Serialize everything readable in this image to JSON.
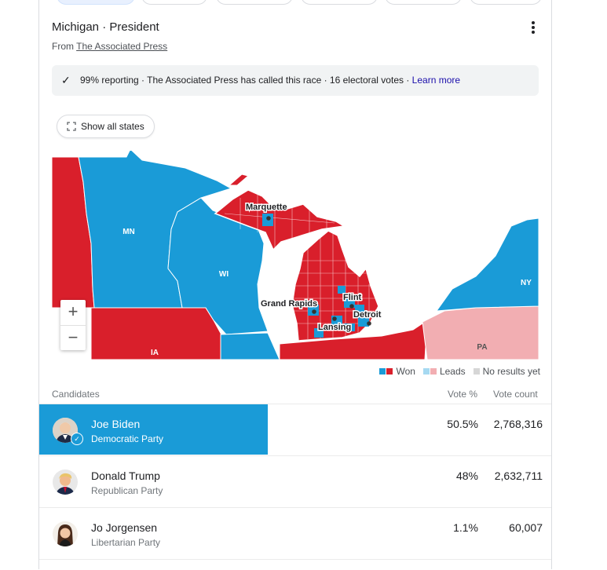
{
  "header": {
    "title": "Michigan · President",
    "source_prefix": "From",
    "source_link": "The Associated Press"
  },
  "banner": {
    "text": "99% reporting · The Associated Press has called this race · 16 electoral votes ·",
    "learn_more": "Learn more"
  },
  "map": {
    "show_all_label": "Show all states",
    "zoom_in": "+",
    "zoom_out": "−",
    "state_labels": {
      "mn": "MN",
      "wi": "WI",
      "ia": "IA",
      "ny": "NY",
      "pa": "PA"
    },
    "city_labels": {
      "marquette": "Marquette",
      "grand_rapids": "Grand Rapids",
      "flint": "Flint",
      "detroit": "Detroit",
      "lansing": "Lansing"
    },
    "colors": {
      "dem": "#1a9bd7",
      "rep": "#d91f2b",
      "dem_lead": "#a6d9f1",
      "rep_lead": "#f2aeb2",
      "none": "#d6d6d6"
    }
  },
  "legend": {
    "won": "Won",
    "leads": "Leads",
    "no_results": "No results yet"
  },
  "table": {
    "col_candidates": "Candidates",
    "col_pct": "Vote %",
    "col_votes": "Vote count",
    "candidates": [
      {
        "name": "Joe Biden",
        "party": "Democratic Party",
        "pct": "50.5%",
        "votes": "2,768,316",
        "bar_fraction": 0.505,
        "color": "#1a9bd7"
      },
      {
        "name": "Donald Trump",
        "party": "Republican Party",
        "pct": "48%",
        "votes": "2,632,711"
      },
      {
        "name": "Jo Jorgensen",
        "party": "Libertarian Party",
        "pct": "1.1%",
        "votes": "60,007"
      }
    ]
  }
}
